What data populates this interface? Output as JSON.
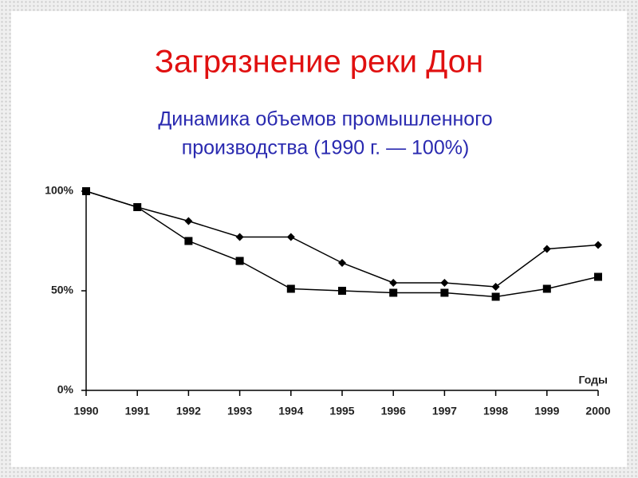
{
  "chart_data": {
    "type": "line",
    "title": "Загрязнение реки Дон",
    "subtitle": [
      "Динамика объемов промышленного",
      "производства (1990 г. — 100%)"
    ],
    "x_label": "Годы",
    "x": [
      1990,
      1991,
      1992,
      1993,
      1994,
      1995,
      1996,
      1997,
      1998,
      1999,
      2000
    ],
    "series": [
      {
        "color": "#000000",
        "marker": "diamond",
        "values": [
          100,
          92,
          85,
          77,
          77,
          64,
          54,
          54,
          52,
          71,
          73
        ]
      },
      {
        "color": "#000000",
        "marker": "square",
        "values": [
          100,
          92,
          75,
          65,
          51,
          50,
          49,
          49,
          47,
          51,
          57
        ]
      }
    ],
    "xlim": [
      1990,
      2000
    ],
    "xticks": [
      1990,
      1991,
      1992,
      1993,
      1994,
      1995,
      1996,
      1997,
      1998,
      1999,
      2000
    ],
    "ylim": [
      0,
      100
    ],
    "yticks": [
      {
        "value": 0,
        "label": "0%"
      },
      {
        "value": 50,
        "label": "50%"
      },
      {
        "value": 100,
        "label": "100%"
      }
    ],
    "grid": false
  }
}
